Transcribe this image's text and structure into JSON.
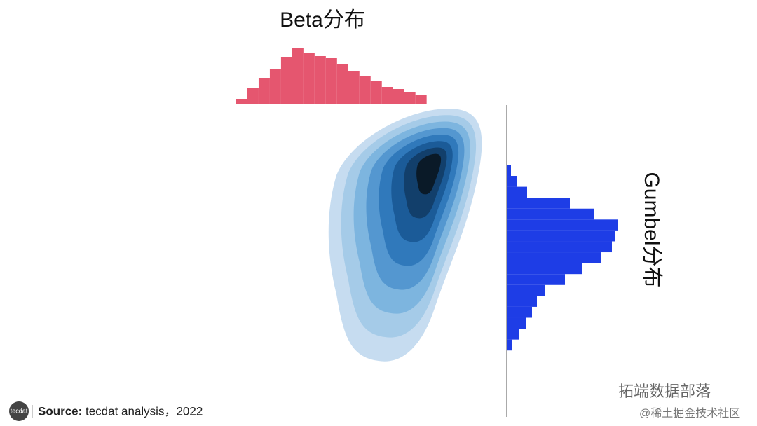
{
  "chart_data": [
    {
      "type": "histogram",
      "title": "Beta分布",
      "color": "#e5566f",
      "orientation": "vertical",
      "bins": [
        0.2,
        0.234,
        0.268,
        0.302,
        0.336,
        0.37,
        0.404,
        0.438,
        0.472,
        0.506,
        0.54,
        0.574,
        0.608,
        0.642,
        0.676,
        0.71,
        0.744,
        0.778
      ],
      "values": [
        6,
        22,
        36,
        49,
        66,
        79,
        72,
        68,
        65,
        57,
        46,
        40,
        32,
        24,
        21,
        17,
        13
      ],
      "xlim": [
        0,
        1
      ],
      "ylim": [
        0,
        80
      ]
    },
    {
      "type": "histogram",
      "title": "Gumbel分布",
      "color": "#1e3de6",
      "orientation": "horizontal",
      "bins": [
        0.213,
        0.248,
        0.283,
        0.318,
        0.353,
        0.388,
        0.423,
        0.458,
        0.493,
        0.528,
        0.563,
        0.598,
        0.633,
        0.668,
        0.703,
        0.738,
        0.773,
        0.808
      ],
      "values": [
        8,
        18,
        27,
        36,
        43,
        54,
        83,
        108,
        135,
        150,
        155,
        159,
        125,
        90,
        29,
        14,
        6
      ],
      "ylim": [
        0,
        1
      ],
      "xlim": [
        0,
        160
      ]
    }
  ],
  "footer": {
    "logo": "tecdat",
    "source_label": "Source:",
    "source": "tecdat analysis，2022",
    "watermark": "拓端数据部落",
    "credit": "@稀土掘金技术社区"
  }
}
